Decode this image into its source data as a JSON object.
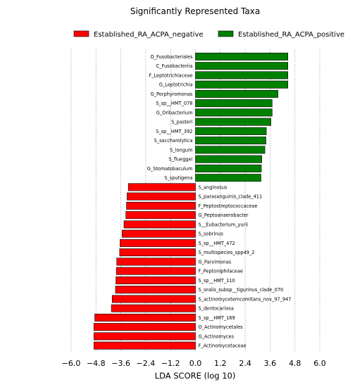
{
  "chart_data": {
    "type": "bar",
    "orientation": "horizontal",
    "title": "Significantly Represented Taxa",
    "xlabel": "LDA SCORE (log 10)",
    "ylabel": "",
    "xlim": [
      -6.0,
      6.0
    ],
    "xticks": [
      "−6.0",
      "−4.8",
      "−3.6",
      "−2.4",
      "−1.2",
      "0.0",
      "1.2",
      "2.4",
      "3.6",
      "4.8",
      "6.0"
    ],
    "grid": "vertical dotted",
    "legend_position": "top",
    "series": [
      {
        "name": "Established_RA_ACPA_negative",
        "color": "#ff0000"
      },
      {
        "name": "Established_RA_ACPA_positive",
        "color": "#008000"
      }
    ],
    "bars": [
      {
        "label": "O_Fusobacteriales",
        "value": 4.46,
        "group": 1
      },
      {
        "label": "C_Fusobacteriia",
        "value": 4.46,
        "group": 1
      },
      {
        "label": "F_Leptotrichiaceae",
        "value": 4.46,
        "group": 1
      },
      {
        "label": "G_Leptotrichia",
        "value": 4.46,
        "group": 1
      },
      {
        "label": "G_Porphyromonas",
        "value": 3.98,
        "group": 1
      },
      {
        "label": "S_sp__HMT_078",
        "value": 3.7,
        "group": 1
      },
      {
        "label": "G_Oribacterium",
        "value": 3.7,
        "group": 1
      },
      {
        "label": "S_pasteri",
        "value": 3.64,
        "group": 1
      },
      {
        "label": "S_sp__HMT_392",
        "value": 3.42,
        "group": 1
      },
      {
        "label": "S_saccharolytica",
        "value": 3.4,
        "group": 1
      },
      {
        "label": "S_longum",
        "value": 3.35,
        "group": 1
      },
      {
        "label": "S_flueggei",
        "value": 3.2,
        "group": 1
      },
      {
        "label": "G_Stomatobaculum",
        "value": 3.18,
        "group": 1
      },
      {
        "label": "S_sputigena",
        "value": 3.16,
        "group": 1
      },
      {
        "label": "S_anginosus",
        "value": -3.24,
        "group": 0
      },
      {
        "label": "S_parasanguinis_clade_411",
        "value": -3.3,
        "group": 0
      },
      {
        "label": "F_Peptostreptococcaceae",
        "value": -3.33,
        "group": 0
      },
      {
        "label": "G_Peptoanaerobacter",
        "value": -3.36,
        "group": 0
      },
      {
        "label": "S__Eubacterium_yurii",
        "value": -3.45,
        "group": 0
      },
      {
        "label": "S_sobrinus",
        "value": -3.54,
        "group": 0
      },
      {
        "label": "S_sp__HMT_472",
        "value": -3.64,
        "group": 0
      },
      {
        "label": "S_multispecies_spp49_2",
        "value": -3.66,
        "group": 0
      },
      {
        "label": "G_Parvimonas",
        "value": -3.8,
        "group": 0
      },
      {
        "label": "F_Peptoniphilaceae",
        "value": -3.82,
        "group": 0
      },
      {
        "label": "S_sp__HMT_110",
        "value": -3.84,
        "group": 0
      },
      {
        "label": "S_oralis_subsp__tigurinus_clade_070",
        "value": -3.86,
        "group": 0
      },
      {
        "label": "S_actinomycetemcomitans_nov_97_947",
        "value": -4.02,
        "group": 0
      },
      {
        "label": "S_dentocariosa",
        "value": -4.06,
        "group": 0
      },
      {
        "label": "S_sp__HMT_169",
        "value": -4.86,
        "group": 0
      },
      {
        "label": "O_Actinomycetales",
        "value": -4.9,
        "group": 0
      },
      {
        "label": "G_Actinomyces",
        "value": -4.9,
        "group": 0
      },
      {
        "label": "F_Actinomycetaceae",
        "value": -4.9,
        "group": 0
      }
    ]
  }
}
